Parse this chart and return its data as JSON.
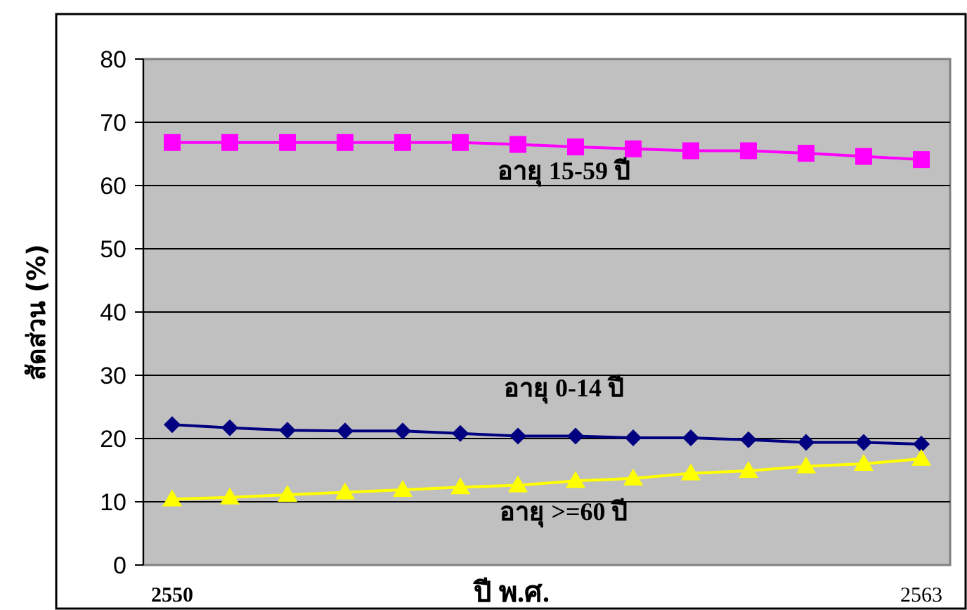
{
  "chart_data": {
    "type": "line",
    "xlabel": "ปี พ.ศ.",
    "ylabel": "สัดส่วน (%)",
    "categories": [
      "2550",
      null,
      null,
      null,
      null,
      null,
      null,
      null,
      null,
      null,
      null,
      null,
      null,
      "2563"
    ],
    "series": [
      {
        "color": "#ff00ff",
        "marker": "square",
        "values": [
          66.8,
          66.8,
          66.8,
          66.8,
          66.8,
          66.8,
          66.5,
          66.1,
          65.8,
          65.5,
          65.5,
          65.1,
          64.6,
          64.1
        ]
      },
      {
        "color": "#000080",
        "marker": "diamond",
        "values": [
          22.2,
          21.7,
          21.3,
          21.2,
          21.2,
          20.8,
          20.4,
          20.4,
          20.1,
          20.1,
          19.8,
          19.4,
          19.4,
          19.1
        ]
      },
      {
        "color": "#ffff00",
        "marker": "triangle",
        "values": [
          10.4,
          10.7,
          11.1,
          11.5,
          11.9,
          12.3,
          12.6,
          13.3,
          13.7,
          14.5,
          14.9,
          15.6,
          16.0,
          16.8
        ]
      }
    ],
    "annotations": [
      "อายุ 15-59 ปี",
      "อายุ 0-14 ปี",
      "อายุ >=60 ปี"
    ],
    "ylim": [
      0,
      80
    ],
    "yticks": [
      0,
      10,
      20,
      30,
      40,
      50,
      60,
      70,
      80
    ],
    "grid": "y"
  }
}
